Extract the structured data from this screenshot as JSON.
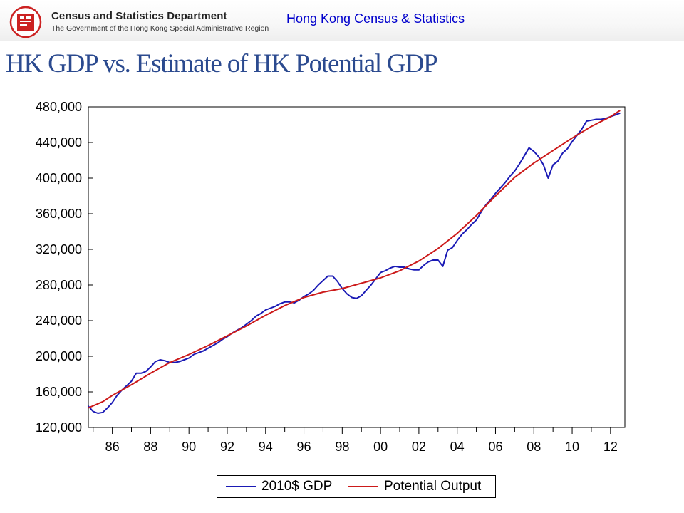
{
  "header": {
    "department_name": "Census and Statistics Department",
    "department_subtitle": "The Government of the Hong Kong Special Administrative Region",
    "site_link": "Hong Kong Census & Statistics"
  },
  "page_title": "HK GDP vs. Estimate of HK Potential GDP",
  "colors": {
    "title": "#2b4a8f",
    "link": "#0000cc",
    "gdp_series": "#1a1ab5",
    "potential_series": "#cc1a1a",
    "logo": "#cc2222"
  },
  "icons": {
    "logo": "csd-logo-icon"
  },
  "chart_data": {
    "type": "line",
    "title": "",
    "xlabel": "",
    "ylabel": "",
    "ylim": [
      120000,
      480000
    ],
    "xlim": [
      1984.75,
      2012.75
    ],
    "y_ticks": [
      120000,
      160000,
      200000,
      240000,
      280000,
      320000,
      360000,
      400000,
      440000,
      480000
    ],
    "y_tick_labels": [
      "120,000",
      "160,000",
      "200,000",
      "240,000",
      "280,000",
      "320,000",
      "360,000",
      "400,000",
      "440,000",
      "480,000"
    ],
    "x_ticks": [
      1986,
      1988,
      1990,
      1992,
      1994,
      1996,
      1998,
      2000,
      2002,
      2004,
      2006,
      2008,
      2010,
      2012
    ],
    "x_tick_labels": [
      "86",
      "88",
      "90",
      "92",
      "94",
      "96",
      "98",
      "00",
      "02",
      "04",
      "06",
      "08",
      "10",
      "12"
    ],
    "grid": false,
    "legend": {
      "position": "bottom"
    },
    "series": [
      {
        "name": "2010$ GDP",
        "points": [
          [
            1984.75,
            144000
          ],
          [
            1985.0,
            138000
          ],
          [
            1985.25,
            136000
          ],
          [
            1985.5,
            137000
          ],
          [
            1985.75,
            142000
          ],
          [
            1986.0,
            148000
          ],
          [
            1986.25,
            156000
          ],
          [
            1986.5,
            162000
          ],
          [
            1986.75,
            167000
          ],
          [
            1987.0,
            172000
          ],
          [
            1987.25,
            181000
          ],
          [
            1987.5,
            181000
          ],
          [
            1987.75,
            183000
          ],
          [
            1988.0,
            188000
          ],
          [
            1988.25,
            194000
          ],
          [
            1988.5,
            196000
          ],
          [
            1988.75,
            195000
          ],
          [
            1989.0,
            193000
          ],
          [
            1989.25,
            193000
          ],
          [
            1989.5,
            194000
          ],
          [
            1989.75,
            196000
          ],
          [
            1990.0,
            198000
          ],
          [
            1990.25,
            202000
          ],
          [
            1990.5,
            204000
          ],
          [
            1990.75,
            206000
          ],
          [
            1991.0,
            209000
          ],
          [
            1991.25,
            212000
          ],
          [
            1991.5,
            215000
          ],
          [
            1991.75,
            219000
          ],
          [
            1992.0,
            222000
          ],
          [
            1992.25,
            226000
          ],
          [
            1992.5,
            229000
          ],
          [
            1992.75,
            232000
          ],
          [
            1993.0,
            236000
          ],
          [
            1993.25,
            240000
          ],
          [
            1993.5,
            245000
          ],
          [
            1993.75,
            248000
          ],
          [
            1994.0,
            252000
          ],
          [
            1994.25,
            254000
          ],
          [
            1994.5,
            256000
          ],
          [
            1994.75,
            259000
          ],
          [
            1995.0,
            261000
          ],
          [
            1995.25,
            261000
          ],
          [
            1995.5,
            260000
          ],
          [
            1995.75,
            263000
          ],
          [
            1996.0,
            267000
          ],
          [
            1996.25,
            270000
          ],
          [
            1996.5,
            274000
          ],
          [
            1996.75,
            280000
          ],
          [
            1997.0,
            285000
          ],
          [
            1997.25,
            290000
          ],
          [
            1997.5,
            290000
          ],
          [
            1997.75,
            284000
          ],
          [
            1998.0,
            276000
          ],
          [
            1998.25,
            270000
          ],
          [
            1998.5,
            266000
          ],
          [
            1998.75,
            265000
          ],
          [
            1999.0,
            268000
          ],
          [
            1999.25,
            274000
          ],
          [
            1999.5,
            280000
          ],
          [
            1999.75,
            287000
          ],
          [
            2000.0,
            294000
          ],
          [
            2000.25,
            296000
          ],
          [
            2000.5,
            299000
          ],
          [
            2000.75,
            301000
          ],
          [
            2001.0,
            300000
          ],
          [
            2001.25,
            300000
          ],
          [
            2001.5,
            298000
          ],
          [
            2001.75,
            297000
          ],
          [
            2002.0,
            297000
          ],
          [
            2002.25,
            302000
          ],
          [
            2002.5,
            306000
          ],
          [
            2002.75,
            308000
          ],
          [
            2003.0,
            308000
          ],
          [
            2003.25,
            301000
          ],
          [
            2003.5,
            319000
          ],
          [
            2003.75,
            322000
          ],
          [
            2004.0,
            330000
          ],
          [
            2004.25,
            337000
          ],
          [
            2004.5,
            342000
          ],
          [
            2004.75,
            348000
          ],
          [
            2005.0,
            353000
          ],
          [
            2005.25,
            362000
          ],
          [
            2005.5,
            370000
          ],
          [
            2005.75,
            376000
          ],
          [
            2006.0,
            383000
          ],
          [
            2006.25,
            389000
          ],
          [
            2006.5,
            395000
          ],
          [
            2006.75,
            402000
          ],
          [
            2007.0,
            408000
          ],
          [
            2007.25,
            416000
          ],
          [
            2007.5,
            425000
          ],
          [
            2007.75,
            434000
          ],
          [
            2008.0,
            430000
          ],
          [
            2008.25,
            424000
          ],
          [
            2008.5,
            415000
          ],
          [
            2008.75,
            400000
          ],
          [
            2009.0,
            415000
          ],
          [
            2009.25,
            419000
          ],
          [
            2009.5,
            428000
          ],
          [
            2009.75,
            433000
          ],
          [
            2010.0,
            441000
          ],
          [
            2010.25,
            448000
          ],
          [
            2010.5,
            455000
          ],
          [
            2010.75,
            464000
          ],
          [
            2011.0,
            465000
          ],
          [
            2011.25,
            466000
          ],
          [
            2011.5,
            466000
          ],
          [
            2011.75,
            467000
          ],
          [
            2012.0,
            469000
          ],
          [
            2012.25,
            471000
          ],
          [
            2012.5,
            473000
          ]
        ]
      },
      {
        "name": "Potential Output",
        "points": [
          [
            1984.75,
            142000
          ],
          [
            1985.5,
            149000
          ],
          [
            1986.0,
            156000
          ],
          [
            1987.0,
            168000
          ],
          [
            1988.0,
            181000
          ],
          [
            1989.0,
            193000
          ],
          [
            1990.0,
            202000
          ],
          [
            1991.0,
            212000
          ],
          [
            1992.0,
            223000
          ],
          [
            1993.0,
            234000
          ],
          [
            1994.0,
            246000
          ],
          [
            1995.0,
            257000
          ],
          [
            1996.0,
            266000
          ],
          [
            1997.0,
            272000
          ],
          [
            1998.0,
            276000
          ],
          [
            1999.0,
            282000
          ],
          [
            2000.0,
            288000
          ],
          [
            2001.0,
            296000
          ],
          [
            2002.0,
            307000
          ],
          [
            2003.0,
            321000
          ],
          [
            2004.0,
            338000
          ],
          [
            2005.0,
            358000
          ],
          [
            2006.0,
            380000
          ],
          [
            2007.0,
            401000
          ],
          [
            2008.0,
            417000
          ],
          [
            2009.0,
            431000
          ],
          [
            2010.0,
            445000
          ],
          [
            2011.0,
            458000
          ],
          [
            2012.0,
            469000
          ],
          [
            2012.5,
            476000
          ]
        ]
      }
    ]
  },
  "legend": {
    "gdp_label": "2010$ GDP",
    "potential_label": "Potential Output"
  }
}
